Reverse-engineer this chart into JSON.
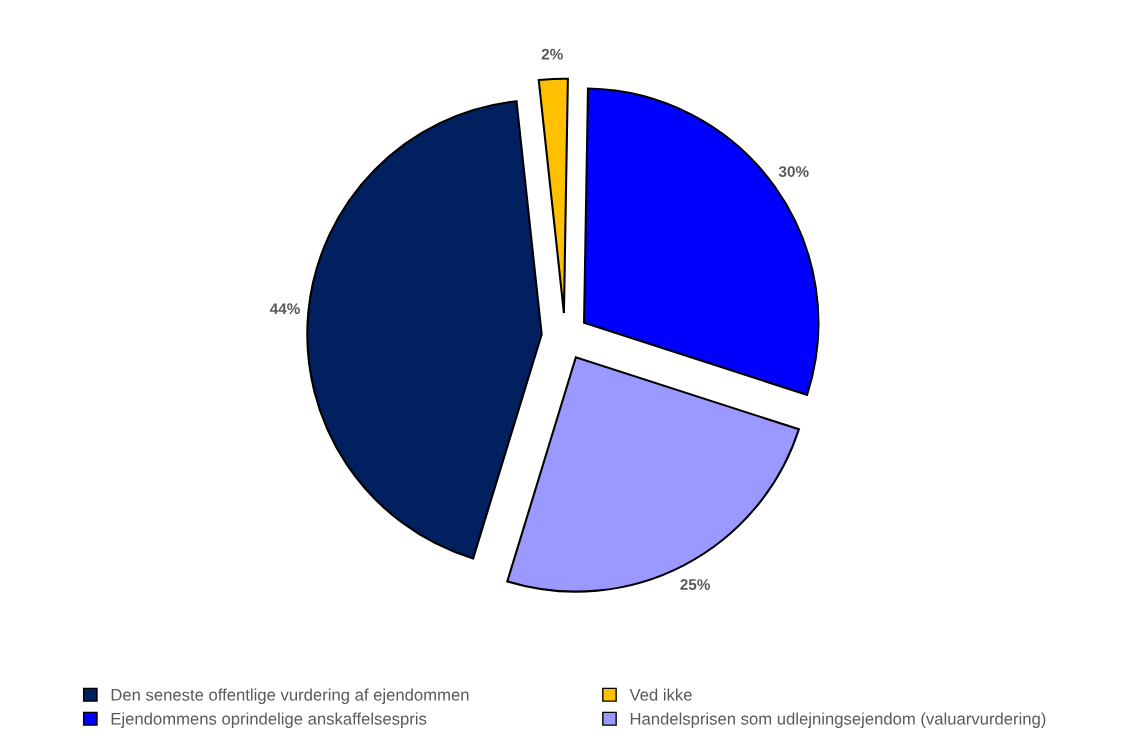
{
  "chart_data": {
    "type": "pie",
    "categories": [
      "Den seneste offentlige vurdering af ejendommen",
      "Ved ikke",
      "Ejendommens oprindelige anskaffelsespris",
      "Handelsprisen som udlejningsejendom (valuarvurdering)"
    ],
    "values": [
      44,
      2,
      30,
      25
    ],
    "colors": [
      "#002060",
      "#ffc000",
      "#0000ff",
      "#9999ff"
    ],
    "value_labels": [
      "44%",
      "2%",
      "30%",
      "25%"
    ],
    "legend": "bottom"
  }
}
